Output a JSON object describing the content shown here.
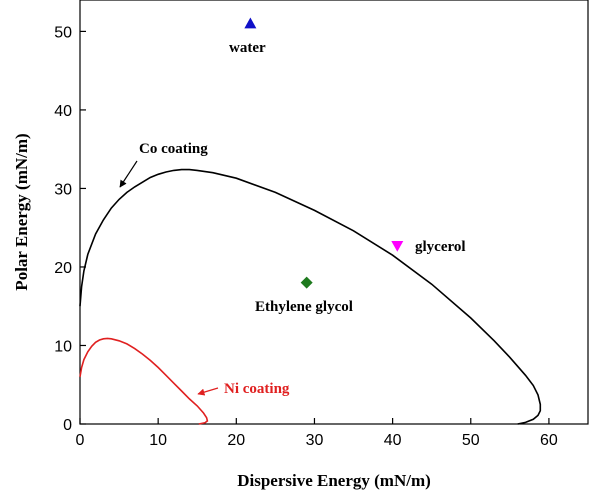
{
  "chart_data": {
    "type": "scatter",
    "xlabel": "Dispersive Energy (mN/m)",
    "ylabel": "Polar Energy (mN/m)",
    "xlim": [
      0,
      65
    ],
    "ylim": [
      0,
      54
    ],
    "xticks": [
      0,
      10,
      20,
      30,
      40,
      50,
      60
    ],
    "yticks": [
      0,
      10,
      20,
      30,
      40,
      50
    ],
    "xtick_labels": [
      "0",
      "10",
      "20",
      "30",
      "40",
      "50",
      "60"
    ],
    "ytick_labels": [
      "0",
      "10",
      "20",
      "30",
      "40",
      "50"
    ],
    "grid": false,
    "points": [
      {
        "name": "water",
        "x": 21.8,
        "y": 51,
        "marker": "triangle-up",
        "color": "#1010c8"
      },
      {
        "name": "glycerol",
        "x": 40.6,
        "y": 22.7,
        "marker": "triangle-down",
        "color": "#ff00ff"
      },
      {
        "name": "Ethylene glycol",
        "x": 29,
        "y": 18,
        "marker": "diamond",
        "color": "#1e7a1e"
      }
    ],
    "curves": [
      {
        "name": "Co coating",
        "color": "#000000",
        "points": [
          [
            0,
            15
          ],
          [
            0.2,
            17.5
          ],
          [
            0.5,
            19.5
          ],
          [
            1,
            21.6
          ],
          [
            2,
            24.2
          ],
          [
            3,
            26
          ],
          [
            4,
            27.5
          ],
          [
            5,
            28.6
          ],
          [
            6,
            29.5
          ],
          [
            7,
            30.2
          ],
          [
            8,
            30.8
          ],
          [
            9,
            31.4
          ],
          [
            10,
            31.8
          ],
          [
            11,
            32.1
          ],
          [
            12,
            32.3
          ],
          [
            13,
            32.4
          ],
          [
            14,
            32.4
          ],
          [
            15,
            32.3
          ],
          [
            17,
            32
          ],
          [
            20,
            31.3
          ],
          [
            25,
            29.5
          ],
          [
            30,
            27.2
          ],
          [
            35,
            24.6
          ],
          [
            40,
            21.5
          ],
          [
            45,
            17.8
          ],
          [
            50,
            13.5
          ],
          [
            53,
            10.6
          ],
          [
            55,
            8.5
          ],
          [
            57,
            6.2
          ],
          [
            58,
            4.9
          ],
          [
            58.6,
            3.7
          ],
          [
            58.9,
            2.5
          ],
          [
            58.9,
            1.7
          ],
          [
            58.6,
            1.1
          ],
          [
            58,
            0.6
          ],
          [
            57,
            0.2
          ],
          [
            56,
            0
          ]
        ]
      },
      {
        "name": "Ni coating",
        "color": "#e02020",
        "points": [
          [
            0,
            6
          ],
          [
            0.2,
            7.2
          ],
          [
            0.5,
            8.2
          ],
          [
            1,
            9.2
          ],
          [
            1.5,
            9.9
          ],
          [
            2,
            10.4
          ],
          [
            2.5,
            10.7
          ],
          [
            3,
            10.85
          ],
          [
            3.5,
            10.9
          ],
          [
            4,
            10.85
          ],
          [
            5,
            10.6
          ],
          [
            6,
            10.2
          ],
          [
            7,
            9.6
          ],
          [
            8,
            8.9
          ],
          [
            9,
            8.1
          ],
          [
            10,
            7.2
          ],
          [
            11,
            6.2
          ],
          [
            12,
            5.2
          ],
          [
            13,
            4.2
          ],
          [
            14,
            3.2
          ],
          [
            15,
            2.3
          ],
          [
            15.8,
            1.4
          ],
          [
            16.2,
            0.8
          ],
          [
            16.3,
            0.4
          ],
          [
            16,
            0.15
          ],
          [
            15.2,
            0
          ]
        ]
      }
    ],
    "annotations": [
      {
        "text": "water",
        "color": "#000000"
      },
      {
        "text": "Co coating",
        "color": "#000000"
      },
      {
        "text": "glycerol",
        "color": "#000000"
      },
      {
        "text": "Ethylene glycol",
        "color": "#000000"
      },
      {
        "text": "Ni coating",
        "color": "#e02020"
      }
    ]
  }
}
